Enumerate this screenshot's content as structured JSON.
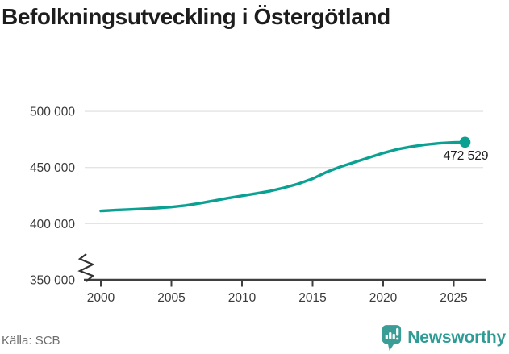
{
  "title": "Befolkningsutveckling i Östergötland",
  "source": "Källa: SCB",
  "branding": {
    "name": "Newsworthy",
    "color": "#3a9d96"
  },
  "colors": {
    "line": "#0aa193",
    "grid": "#e4e4e4",
    "axis": "#3f3f3f",
    "tick_label": "#3a3a3a",
    "annotation": "#1f1f1f"
  },
  "chart_data": {
    "type": "line",
    "title": "Befolkningsutveckling i Östergötland",
    "xlabel": "",
    "ylabel": "",
    "xlim": [
      1999.5,
      2027.3
    ],
    "ylim": [
      350000,
      503000
    ],
    "grid": "horizontal-only",
    "legend": "none",
    "axis_break_at_y": 350000,
    "source": "SCB",
    "y_ticks": [
      {
        "value": 500000,
        "label": "500 000"
      },
      {
        "value": 450000,
        "label": "450 000"
      },
      {
        "value": 400000,
        "label": "400 000"
      },
      {
        "value": 350000,
        "label": "350 000"
      }
    ],
    "x_ticks": [
      {
        "value": 2000,
        "label": "2000"
      },
      {
        "value": 2005,
        "label": "2005"
      },
      {
        "value": 2010,
        "label": "2010"
      },
      {
        "value": 2015,
        "label": "2015"
      },
      {
        "value": 2020,
        "label": "2020"
      },
      {
        "value": 2025,
        "label": "2025"
      }
    ],
    "end_annotation": {
      "label": "472 529",
      "value": 472529,
      "x": 2025.8
    },
    "series": [
      {
        "name": "Befolkning i Östergötland",
        "color": "#0aa193",
        "x": [
          2000,
          2001,
          2002,
          2003,
          2004,
          2005,
          2006,
          2007,
          2008,
          2009,
          2010,
          2011,
          2012,
          2013,
          2014,
          2015,
          2016,
          2017,
          2018,
          2019,
          2020,
          2021,
          2022,
          2023,
          2024,
          2025,
          2025.8
        ],
        "values": [
          411300,
          412000,
          412600,
          413200,
          413900,
          414800,
          416200,
          418100,
          420400,
          422700,
          424800,
          426900,
          429000,
          432000,
          435500,
          440000,
          446000,
          450800,
          454800,
          458800,
          462800,
          466200,
          468600,
          470400,
          471600,
          472300,
          472529
        ]
      }
    ]
  }
}
